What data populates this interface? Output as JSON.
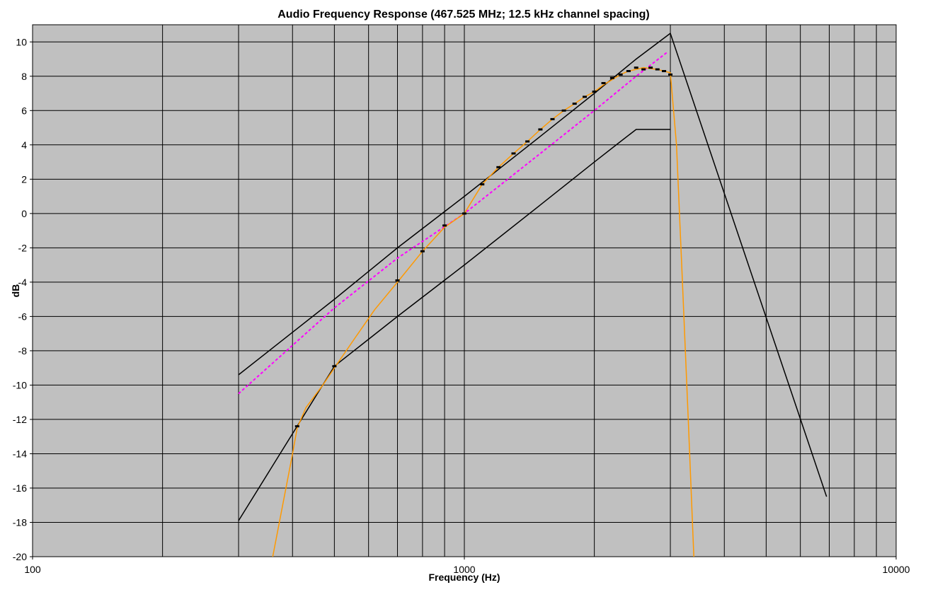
{
  "chart_data": {
    "type": "line",
    "title": "Audio Frequency Response (467.525 MHz; 12.5 kHz channel spacing)",
    "xlabel": "Frequency (Hz)",
    "ylabel": "dB",
    "xscale": "log",
    "xlim": [
      100,
      10000
    ],
    "ylim": [
      -20,
      11
    ],
    "x_tick_labels": [
      "100",
      "1000",
      "10000"
    ],
    "y_ticks": [
      10,
      8,
      6,
      4,
      2,
      0,
      -2,
      -4,
      -6,
      -8,
      -10,
      -12,
      -14,
      -16,
      -18,
      -20
    ],
    "grid": true,
    "plot_background": "#c0c0c0",
    "series": [
      {
        "name": "",
        "color": "#000000",
        "style": "solid",
        "points": [
          [
            300,
            -9.4
          ],
          [
            500,
            -5.0
          ],
          [
            700,
            -2.0
          ],
          [
            1000,
            1.0
          ],
          [
            1500,
            4.5
          ],
          [
            2000,
            7.0
          ],
          [
            2500,
            9.0
          ],
          [
            3000,
            10.5
          ],
          [
            6900,
            -16.5
          ]
        ]
      },
      {
        "name": "",
        "color": "#000000",
        "style": "solid",
        "points": [
          [
            300,
            -17.9
          ],
          [
            500,
            -8.9
          ],
          [
            700,
            -6.0
          ],
          [
            1000,
            -3.0
          ],
          [
            1500,
            0.5
          ],
          [
            2000,
            3.0
          ],
          [
            2300,
            4.2
          ],
          [
            2500,
            4.9
          ],
          [
            3000,
            4.9
          ]
        ]
      },
      {
        "name": "",
        "color": "#ff00ff",
        "style": "dashed",
        "points": [
          [
            300,
            -10.5
          ],
          [
            500,
            -5.5
          ],
          [
            700,
            -2.6
          ],
          [
            1000,
            0.0
          ],
          [
            1500,
            3.5
          ],
          [
            2000,
            6.0
          ],
          [
            2500,
            8.0
          ],
          [
            2950,
            9.4
          ]
        ]
      },
      {
        "name": "",
        "color": "#ff9900",
        "style": "solid",
        "points": [
          [
            360,
            -20
          ],
          [
            400,
            -14
          ],
          [
            410,
            -12.5
          ],
          [
            430,
            -11.3
          ],
          [
            470,
            -10.0
          ],
          [
            500,
            -9.0
          ],
          [
            560,
            -7.2
          ],
          [
            620,
            -5.6
          ],
          [
            700,
            -4.0
          ],
          [
            800,
            -2.2
          ],
          [
            900,
            -0.8
          ],
          [
            1000,
            0.0
          ],
          [
            1100,
            1.7
          ],
          [
            1200,
            2.7
          ],
          [
            1300,
            3.5
          ],
          [
            1400,
            4.2
          ],
          [
            1500,
            4.9
          ],
          [
            1600,
            5.5
          ],
          [
            1700,
            6.0
          ],
          [
            1800,
            6.4
          ],
          [
            1900,
            6.8
          ],
          [
            2000,
            7.1
          ],
          [
            2100,
            7.5
          ],
          [
            2200,
            7.8
          ],
          [
            2300,
            8.1
          ],
          [
            2400,
            8.3
          ],
          [
            2500,
            8.4
          ],
          [
            2600,
            8.5
          ],
          [
            2800,
            8.4
          ],
          [
            3000,
            8.2
          ],
          [
            3100,
            4.0
          ],
          [
            3200,
            -4.0
          ],
          [
            3300,
            -12.0
          ],
          [
            3400,
            -20.0
          ]
        ]
      },
      {
        "name": "",
        "color": "#000000",
        "style": "markers",
        "points": [
          [
            410,
            -12.4
          ],
          [
            500,
            -8.9
          ],
          [
            700,
            -3.9
          ],
          [
            800,
            -2.2
          ],
          [
            900,
            -0.7
          ],
          [
            1000,
            0.0
          ],
          [
            1100,
            1.7
          ],
          [
            1200,
            2.7
          ],
          [
            1300,
            3.5
          ],
          [
            1400,
            4.2
          ],
          [
            1500,
            4.9
          ],
          [
            1600,
            5.5
          ],
          [
            1700,
            6.0
          ],
          [
            1800,
            6.4
          ],
          [
            1900,
            6.8
          ],
          [
            2000,
            7.1
          ],
          [
            2100,
            7.6
          ],
          [
            2200,
            7.9
          ],
          [
            2300,
            8.1
          ],
          [
            2400,
            8.3
          ],
          [
            2500,
            8.5
          ],
          [
            2600,
            8.4
          ],
          [
            2700,
            8.5
          ],
          [
            2800,
            8.4
          ],
          [
            2900,
            8.3
          ],
          [
            3000,
            8.1
          ]
        ]
      }
    ]
  }
}
